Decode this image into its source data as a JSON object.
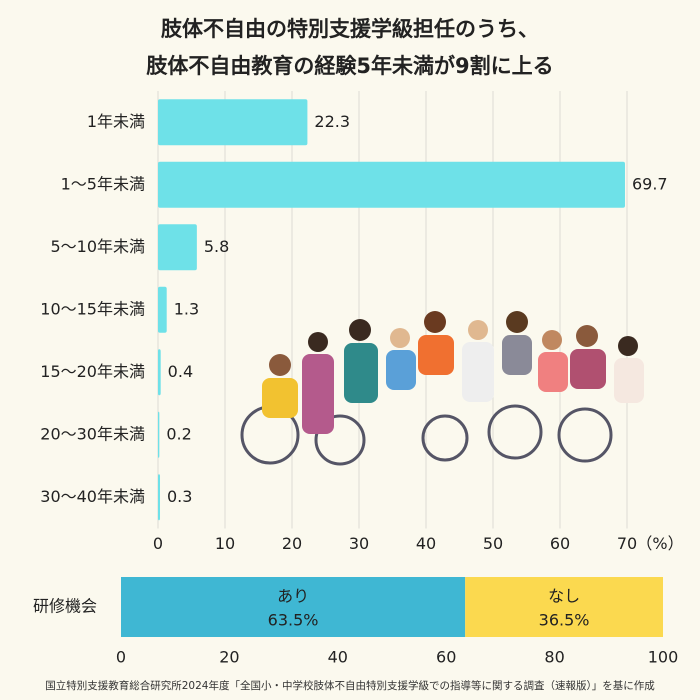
{
  "chart_data": [
    {
      "type": "bar",
      "title": [
        "肢体不自由の特別支援学級担任のうち、",
        "肢体不自由教育の経験5年未満が9割に上る"
      ],
      "categories": [
        "1年未満",
        "1～5年未満",
        "5～10年未満",
        "10～15年未満",
        "15～20年未満",
        "20～30年未満",
        "30～40年未満"
      ],
      "values": [
        22.3,
        69.7,
        5.8,
        1.3,
        0.4,
        0.2,
        0.3
      ],
      "color": "#6ee1e8",
      "xlim": [
        0,
        70
      ],
      "xticks": [
        0,
        10,
        20,
        30,
        40,
        50,
        60,
        70
      ],
      "xlabel": "（%）",
      "grid": true
    },
    {
      "type": "stacked_bar",
      "categories": [
        "研修機会"
      ],
      "series": [
        {
          "name": "あり",
          "color": "#3fb7d3",
          "values": [
            63.5
          ],
          "value_labels": [
            "63.5%"
          ]
        },
        {
          "name": "なし",
          "color": "#fbd94f",
          "values": [
            36.5
          ],
          "value_labels": [
            "36.5%"
          ]
        }
      ],
      "xlim": [
        0,
        100
      ],
      "xticks": [
        0,
        20,
        40,
        60,
        80,
        100
      ]
    }
  ],
  "source": "国立特別支援教育総合研究所2024年度「全国小・中学校肢体不自由特別支援学級での指導等に関する調査（速報版）」を基に作成"
}
